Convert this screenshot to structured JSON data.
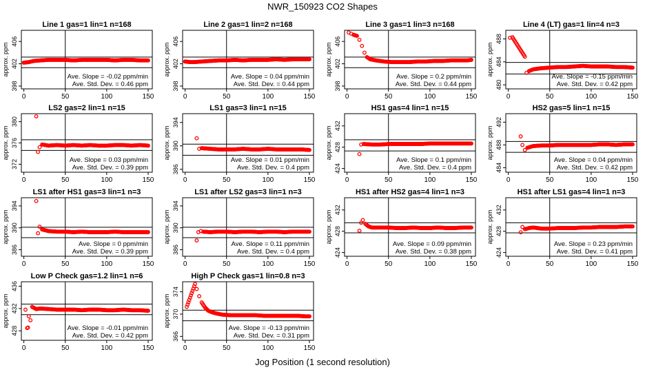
{
  "figure": {
    "title": "NWR_150923  CO2 Shapes",
    "xlabel": "Jog Position (1 second resolution)"
  },
  "style": {
    "point_color": "#ff0000"
  },
  "chart_data": [
    {
      "type": "scatter",
      "title": "Line 1 gas=1 lin=1 n=168",
      "ylabel": "approx. ppm",
      "ylim": [
        397.5,
        408
      ],
      "yticks": [
        398,
        402,
        406
      ],
      "xlim": [
        -3,
        155
      ],
      "xticks": [
        0,
        50,
        100,
        150
      ],
      "hlines": [
        403.2,
        401.3
      ],
      "vline": 50,
      "annotations": [
        "Ave. Slope = -0.02  ppm/min",
        "Ave. Std. Dev. = 0.46  ppm"
      ],
      "series": [
        {
          "x": [
            0,
            6,
            12,
            20,
            30,
            40,
            50,
            60,
            70,
            80,
            90,
            100,
            110,
            120,
            130,
            140,
            150
          ],
          "y": [
            402.2,
            402.3,
            402.5,
            402.6,
            402.7,
            402.7,
            402.7,
            402.6,
            402.7,
            402.7,
            402.7,
            402.7,
            402.6,
            402.7,
            402.7,
            402.6,
            402.6
          ]
        }
      ]
    },
    {
      "type": "scatter",
      "title": "Line 2 gas=1 lin=2 n=168",
      "ylabel": "approx. ppm",
      "ylim": [
        397.5,
        408
      ],
      "yticks": [
        398,
        402,
        406
      ],
      "xlim": [
        -3,
        155
      ],
      "xticks": [
        0,
        50,
        100,
        150
      ],
      "hlines": [
        403.2,
        401.3
      ],
      "vline": 50,
      "annotations": [
        "Ave. Slope = 0.04  ppm/min",
        "Ave. Std. Dev. = 0.44  ppm"
      ],
      "series": [
        {
          "x": [
            0,
            6,
            12,
            20,
            30,
            40,
            50,
            60,
            70,
            80,
            90,
            100,
            110,
            120,
            130,
            140,
            150
          ],
          "y": [
            402.4,
            402.3,
            402.3,
            402.4,
            402.5,
            402.6,
            402.6,
            402.7,
            402.6,
            402.7,
            402.7,
            402.7,
            402.8,
            402.7,
            402.8,
            402.8,
            402.8
          ]
        }
      ]
    },
    {
      "type": "scatter",
      "title": "Line 3 gas=1 lin=3 n=168",
      "ylabel": "approx. ppm",
      "ylim": [
        397.5,
        408
      ],
      "yticks": [
        398,
        402,
        406
      ],
      "xlim": [
        -3,
        155
      ],
      "xticks": [
        0,
        50,
        100,
        150
      ],
      "hlines": [
        403.2,
        401.3
      ],
      "vline": 50,
      "annotations": [
        "Ave. Slope = 0.2  ppm/min",
        "Ave. Std. Dev. = 0.44  ppm"
      ],
      "series": [
        {
          "x": [
            2,
            5,
            8,
            12,
            15,
            18,
            21,
            24,
            28,
            35,
            45,
            55,
            65,
            75,
            85,
            95,
            105,
            115,
            125,
            135,
            145,
            150
          ],
          "y": [
            407.6,
            407.4,
            407.2,
            407.0,
            406.3,
            405.2,
            404.0,
            403.2,
            402.8,
            402.6,
            402.4,
            402.3,
            402.3,
            402.3,
            402.4,
            402.4,
            402.5,
            402.5,
            402.6,
            402.6,
            402.6,
            402.7
          ]
        }
      ]
    },
    {
      "type": "scatter",
      "title": "Line 4 (LT) gas=1 lin=4 n=3",
      "ylabel": "approx. ppm",
      "ylim": [
        479.3,
        489.5
      ],
      "yticks": [
        480,
        484,
        488
      ],
      "xlim": [
        -3,
        155
      ],
      "xticks": [
        0,
        50,
        100,
        150
      ],
      "hlines": [
        483.9,
        481.9
      ],
      "vline": 50,
      "annotations": [
        "Ave. Slope = -0.15  ppm/min",
        "Ave. Std. Dev. = 0.42  ppm"
      ],
      "series": [
        {
          "x": [
            2,
            5,
            20,
            22,
            25,
            30,
            40,
            50,
            60,
            70,
            80,
            90,
            100,
            110,
            120,
            130,
            140,
            150
          ],
          "y": [
            488.2,
            488.3,
            484.9,
            482.1,
            482.4,
            482.7,
            482.9,
            483.0,
            483.1,
            483.1,
            483.2,
            483.3,
            483.2,
            483.2,
            483.2,
            483.1,
            483.1,
            483.0
          ]
        }
      ]
    },
    {
      "type": "scatter",
      "title": "LS2 gas=2 lin=1 n=15",
      "ylabel": "approx. ppm",
      "ylim": [
        370.5,
        381.5
      ],
      "yticks": [
        372,
        376,
        380
      ],
      "xlim": [
        -3,
        155
      ],
      "xticks": [
        0,
        50,
        100,
        150
      ],
      "hlines": [
        376.6,
        374.6
      ],
      "vline": 50,
      "annotations": [
        "Ave. Slope = 0.03  ppm/min",
        "Ave. Std. Dev. = 0.39  ppm"
      ],
      "series": [
        {
          "x": [
            15,
            17,
            19,
            22,
            30,
            40,
            50,
            60,
            70,
            80,
            90,
            100,
            110,
            120,
            130,
            140,
            150
          ],
          "y": [
            381.0,
            374.3,
            375.2,
            375.7,
            375.5,
            375.6,
            375.5,
            375.6,
            375.5,
            375.6,
            375.5,
            375.5,
            375.6,
            375.6,
            375.5,
            375.6,
            375.5
          ]
        }
      ]
    },
    {
      "type": "scatter",
      "title": "LS1 gas=3 lin=1 n=15",
      "ylabel": "approx. ppm",
      "ylim": [
        385.5,
        395.5
      ],
      "yticks": [
        386,
        390,
        394
      ],
      "xlim": [
        -3,
        155
      ],
      "xticks": [
        0,
        50,
        100,
        150
      ],
      "hlines": [
        390.3,
        388.4
      ],
      "vline": 50,
      "annotations": [
        "Ave. Slope = 0.01  ppm/min",
        "Ave. Std. Dev. = 0.4  ppm"
      ],
      "series": [
        {
          "x": [
            14,
            17,
            20,
            30,
            40,
            50,
            60,
            70,
            80,
            90,
            100,
            110,
            120,
            130,
            140,
            150
          ],
          "y": [
            391.3,
            389.5,
            389.6,
            389.5,
            389.4,
            389.4,
            389.4,
            389.5,
            389.4,
            389.4,
            389.5,
            389.4,
            389.4,
            389.4,
            389.4,
            389.3
          ]
        }
      ]
    },
    {
      "type": "scatter",
      "title": "HS1 gas=4 lin=1 n=15",
      "ylabel": "approx. ppm",
      "ylim": [
        423.3,
        434.3
      ],
      "yticks": [
        424,
        428,
        432
      ],
      "xlim": [
        -3,
        155
      ],
      "xticks": [
        0,
        50,
        100,
        150
      ],
      "hlines": [
        429.4,
        427.3
      ],
      "vline": 50,
      "annotations": [
        "Ave. Slope = 0.1  ppm/min",
        "Ave. Std. Dev. = 0.4  ppm"
      ],
      "series": [
        {
          "x": [
            15,
            17,
            20,
            30,
            40,
            50,
            60,
            70,
            80,
            90,
            100,
            110,
            120,
            130,
            140,
            150
          ],
          "y": [
            426.7,
            428.5,
            428.6,
            428.5,
            428.5,
            428.6,
            428.6,
            428.6,
            428.6,
            428.6,
            428.7,
            428.7,
            428.7,
            428.7,
            428.7,
            428.7
          ]
        }
      ]
    },
    {
      "type": "scatter",
      "title": "HS2 gas=5 lin=1 n=15",
      "ylabel": "approx. ppm",
      "ylim": [
        483.2,
        493.5
      ],
      "yticks": [
        484,
        488,
        492
      ],
      "xlim": [
        -3,
        155
      ],
      "xticks": [
        0,
        50,
        100,
        150
      ],
      "hlines": [
        488.6,
        486.7
      ],
      "vline": 50,
      "annotations": [
        "Ave. Slope = 0.04  ppm/min",
        "Ave. Std. Dev. = 0.42  ppm"
      ],
      "series": [
        {
          "x": [
            15,
            17,
            20,
            23,
            30,
            40,
            50,
            60,
            70,
            80,
            90,
            100,
            110,
            120,
            130,
            140,
            150
          ],
          "y": [
            489.5,
            488.0,
            487.1,
            487.5,
            487.8,
            487.9,
            487.9,
            488.0,
            488.0,
            488.0,
            488.0,
            488.0,
            488.1,
            488.1,
            488.0,
            488.1,
            488.1
          ]
        }
      ]
    },
    {
      "type": "scatter",
      "title": "LS1 after HS1 gas=3 lin=1 n=3",
      "ylabel": "approx. ppm",
      "ylim": [
        384.8,
        395.5
      ],
      "yticks": [
        386,
        390,
        394
      ],
      "xlim": [
        -3,
        155
      ],
      "xticks": [
        0,
        50,
        100,
        150
      ],
      "hlines": [
        390.1,
        388.2
      ],
      "vline": 50,
      "annotations": [
        "Ave. Slope = 0  ppm/min",
        "Ave. Std. Dev. = 0.39  ppm"
      ],
      "series": [
        {
          "x": [
            15,
            17,
            19,
            22,
            30,
            40,
            50,
            60,
            70,
            80,
            90,
            100,
            110,
            120,
            130,
            140,
            150
          ],
          "y": [
            394.9,
            389.0,
            390.2,
            389.7,
            389.4,
            389.3,
            389.3,
            389.2,
            389.3,
            389.2,
            389.2,
            389.2,
            389.3,
            389.2,
            389.2,
            389.2,
            389.2
          ]
        }
      ]
    },
    {
      "type": "scatter",
      "title": "LS1 after LS2 gas=3 lin=1 n=3",
      "ylabel": "approx. ppm",
      "ylim": [
        384.8,
        395.5
      ],
      "yticks": [
        386,
        390,
        394
      ],
      "xlim": [
        -3,
        155
      ],
      "xticks": [
        0,
        50,
        100,
        150
      ],
      "hlines": [
        390.1,
        388.2
      ],
      "vline": 50,
      "annotations": [
        "Ave. Slope = 0.11  ppm/min",
        "Ave. Std. Dev. = 0.4  ppm"
      ],
      "series": [
        {
          "x": [
            14,
            16,
            19,
            22,
            30,
            40,
            50,
            60,
            70,
            80,
            90,
            100,
            110,
            120,
            130,
            140,
            150
          ],
          "y": [
            387.7,
            389.2,
            389.4,
            389.3,
            389.2,
            389.3,
            389.3,
            389.2,
            389.3,
            389.3,
            389.2,
            389.3,
            389.3,
            389.2,
            389.3,
            389.3,
            389.3
          ]
        }
      ]
    },
    {
      "type": "scatter",
      "title": "HS1 after HS2 gas=4 lin=1 n=3",
      "ylabel": "approx. ppm",
      "ylim": [
        423.3,
        434.3
      ],
      "yticks": [
        424,
        428,
        432
      ],
      "xlim": [
        -3,
        155
      ],
      "xticks": [
        0,
        50,
        100,
        150
      ],
      "hlines": [
        429.6,
        427.7
      ],
      "vline": 50,
      "annotations": [
        "Ave. Slope = 0.09  ppm/min",
        "Ave. Std. Dev. = 0.38  ppm"
      ],
      "series": [
        {
          "x": [
            15,
            17,
            19,
            22,
            26,
            30,
            40,
            50,
            60,
            70,
            80,
            90,
            100,
            110,
            120,
            130,
            140,
            150
          ],
          "y": [
            428.1,
            429.6,
            430.1,
            429.4,
            428.9,
            428.7,
            428.7,
            428.7,
            428.6,
            428.6,
            428.7,
            428.6,
            428.6,
            428.7,
            428.6,
            428.6,
            428.7,
            428.7
          ]
        }
      ]
    },
    {
      "type": "scatter",
      "title": "HS1 after LS1 gas=4 lin=1 n=3",
      "ylabel": "approx. ppm",
      "ylim": [
        423.3,
        434.3
      ],
      "yticks": [
        424,
        428,
        432
      ],
      "xlim": [
        -3,
        155
      ],
      "xticks": [
        0,
        50,
        100,
        150
      ],
      "hlines": [
        429.6,
        427.7
      ],
      "vline": 50,
      "annotations": [
        "Ave. Slope = 0.23  ppm/min",
        "Ave. Std. Dev. = 0.41  ppm"
      ],
      "series": [
        {
          "x": [
            15,
            17,
            20,
            25,
            30,
            40,
            50,
            60,
            70,
            80,
            90,
            100,
            110,
            120,
            130,
            140,
            150
          ],
          "y": [
            427.8,
            428.8,
            428.4,
            428.6,
            428.7,
            428.5,
            428.5,
            428.6,
            428.6,
            428.6,
            428.7,
            428.7,
            428.8,
            428.8,
            428.8,
            428.9,
            428.9
          ]
        }
      ]
    },
    {
      "type": "scatter",
      "title": "Low P Check gas=1.2 lin=1 n=6",
      "ylabel": "approx. ppm",
      "ylim": [
        426.3,
        436.8
      ],
      "yticks": [
        428,
        432,
        436
      ],
      "xlim": [
        -3,
        155
      ],
      "xticks": [
        0,
        50,
        100,
        150
      ],
      "hlines": [
        432.8,
        430.9
      ],
      "vline": 50,
      "annotations": [
        "Ave. Slope = -0.01  ppm/min",
        "Ave. Std. Dev. = 0.42  ppm"
      ],
      "series": [
        {
          "x": [
            2,
            4,
            5,
            6,
            8,
            10,
            15,
            20,
            30,
            40,
            50,
            60,
            70,
            80,
            90,
            100,
            110,
            120,
            130,
            140,
            150
          ],
          "y": [
            431.8,
            428.5,
            428.6,
            430.6,
            429.9,
            432.3,
            431.9,
            432.0,
            431.9,
            431.8,
            431.8,
            431.8,
            431.7,
            431.8,
            431.8,
            431.7,
            431.7,
            431.8,
            431.7,
            431.7,
            431.6
          ]
        }
      ]
    },
    {
      "type": "scatter",
      "title": "High P Check gas=1 lin=0.8 n=3",
      "ylabel": "approx. ppm",
      "ylim": [
        365.3,
        375.8
      ],
      "yticks": [
        366,
        370,
        374
      ],
      "xlim": [
        -3,
        155
      ],
      "xticks": [
        0,
        50,
        100,
        150
      ],
      "hlines": [
        370.7,
        368.8
      ],
      "vline": 50,
      "annotations": [
        "Ave. Slope = -0.13  ppm/min",
        "Ave. Std. Dev. = 0.31  ppm"
      ],
      "series": [
        {
          "x": [
            2,
            12,
            14,
            17,
            20,
            24,
            28,
            33,
            38,
            45,
            55,
            65,
            75,
            85,
            95,
            105,
            115,
            125,
            135,
            145,
            150
          ],
          "y": [
            371.3,
            375.4,
            374.5,
            373.2,
            372.1,
            371.2,
            370.6,
            370.3,
            370.1,
            369.9,
            369.8,
            369.8,
            369.8,
            369.8,
            369.7,
            369.7,
            369.7,
            369.7,
            369.7,
            369.6,
            369.6
          ]
        }
      ]
    }
  ]
}
